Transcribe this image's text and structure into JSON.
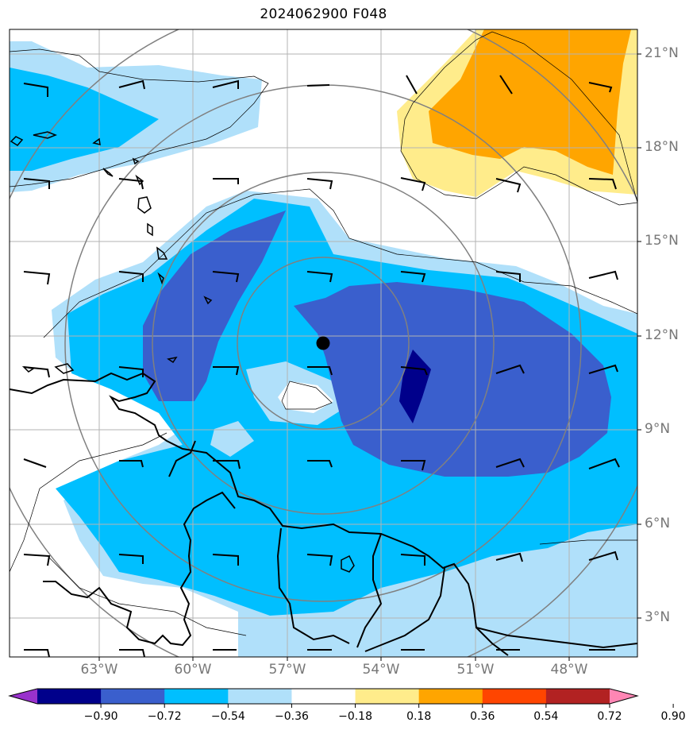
{
  "title": "2024062900 F048",
  "lat_labels": [
    "21°N",
    "18°N",
    "15°N",
    "12°N",
    "9°N",
    "6°N",
    "3°N"
  ],
  "lon_labels": [
    "63°W",
    "60°W",
    "57°W",
    "54°W",
    "51°W",
    "48°W"
  ],
  "colorbar": {
    "tick_labels": [
      "−0.90",
      "−0.72",
      "−0.54",
      "−0.36",
      "−0.18",
      "0.18",
      "0.36",
      "0.54",
      "0.72",
      "0.90"
    ],
    "colors": [
      "#9932cc",
      "#00008b",
      "#3a5fcd",
      "#00bfff",
      "#b0e0fa",
      "#ffffff",
      "#ffec8b",
      "#ffa500",
      "#ff4500",
      "#b22222",
      "#ff86b4"
    ]
  },
  "center_marker": {
    "lat": 11.8,
    "lon": -55.8
  },
  "colors": {
    "gridline": "#b3b3b3",
    "range_ring": "#808080",
    "coastline": "#000000"
  }
}
